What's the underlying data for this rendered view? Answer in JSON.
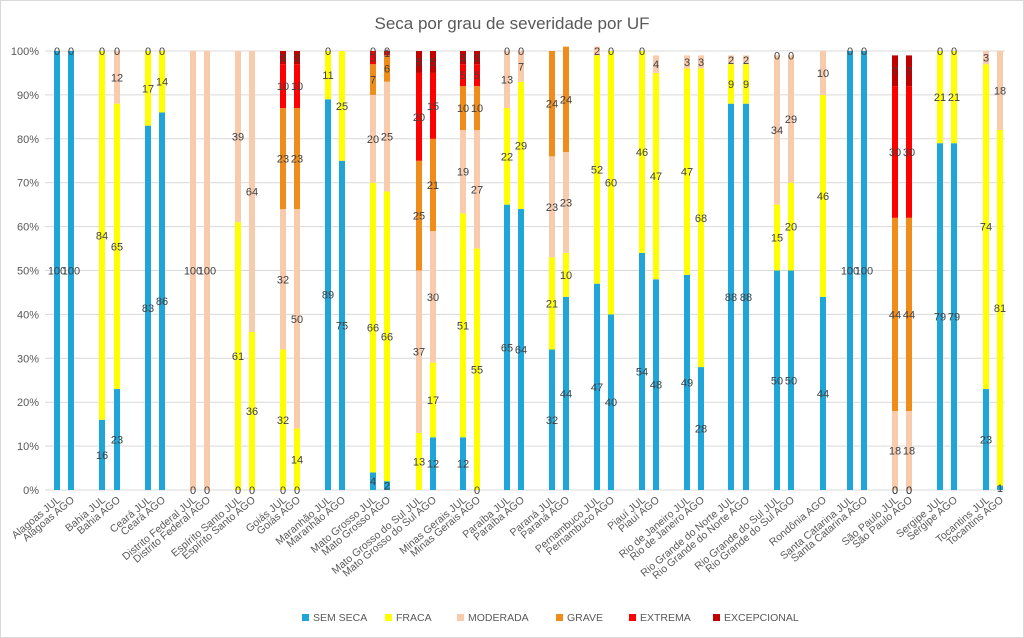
{
  "chart_data": {
    "type": "bar",
    "stacked": true,
    "percent_stacked": true,
    "title": "Seca por grau de severidade por UF",
    "ylim": [
      0,
      100
    ],
    "yticks": [
      "0%",
      "10%",
      "20%",
      "30%",
      "40%",
      "50%",
      "60%",
      "70%",
      "80%",
      "90%",
      "100%"
    ],
    "grid": true,
    "legend_position": "bottom",
    "categories": [
      "Alagoas JUL",
      "Alagoas AGO",
      "Bahia JUL",
      "Bahia AGO",
      "Ceará JUL",
      "Ceará AGO",
      "Distrito Federal JUL",
      "Distrito Federal AGO",
      "Espírito Santo JUL",
      "Espírito Santo AGO",
      "Goiás JUL",
      "Goiás AGO",
      "Maranhão JUL",
      "Maranhão AGO",
      "Mato Grosso JUL",
      "Mato Grosso AGO",
      "Mato Grosso do Sul JUL",
      "Mato Grosso do Sul AGO",
      "Minas Gerais JUL",
      "Minas Gerais AGO",
      "Paraíba JUL",
      "Paraíba AGO",
      "Paraná JUL",
      "Paraná AGO",
      "Pernambuco JUL",
      "Pernambuco AGO",
      "Piauí JUL",
      "Piauí AGO",
      "Rio de Janeiro JUL",
      "Rio de Janeiro AGO",
      "Rio Grande do Norte JUL",
      "Rio Grande do Norte AGO",
      "Rio Grande do Sul JUL",
      "Rio Grande do Sul AGO",
      "Rondônia AGO",
      "Santa Catarina JUL",
      "Santa Catarina AGO",
      "São Paulo JUL",
      "São Paulo AGO",
      "Sergipe JUL",
      "Sergipe AGO",
      "Tocantins JUL",
      "Tocantins AGO"
    ],
    "series": [
      {
        "name": "SEM SECA",
        "color": "#1fa5d8",
        "values": [
          100,
          100,
          16,
          23,
          83,
          86,
          null,
          null,
          0,
          0,
          0,
          0,
          89,
          75,
          4,
          2,
          0,
          12,
          12,
          0,
          65,
          64,
          32,
          44,
          47,
          40,
          54,
          48,
          49,
          28,
          88,
          88,
          50,
          50,
          44,
          100,
          100,
          0,
          0,
          79,
          79,
          23,
          1
        ]
      },
      {
        "name": "FRACA",
        "color": "#ffff00",
        "values": [
          0,
          0,
          84,
          65,
          17,
          14,
          null,
          null,
          61,
          36,
          32,
          14,
          11,
          25,
          66,
          66,
          13,
          17,
          51,
          55,
          22,
          29,
          21,
          10,
          52,
          60,
          46,
          47,
          47,
          68,
          9,
          9,
          15,
          20,
          46,
          0,
          0,
          0,
          0,
          21,
          21,
          74,
          81
        ]
      },
      {
        "name": "MODERADA",
        "color": "#f8cbad",
        "values": [
          0,
          0,
          0,
          12,
          0,
          0,
          100,
          100,
          39,
          64,
          32,
          50,
          0,
          0,
          20,
          25,
          37,
          30,
          19,
          27,
          13,
          7,
          23,
          23,
          2,
          0,
          0,
          4,
          3,
          3,
          2,
          2,
          34,
          29,
          10,
          0,
          0,
          18,
          18,
          0,
          0,
          3,
          18
        ]
      },
      {
        "name": "GRAVE",
        "color": "#f08c1a",
        "values": [
          0,
          0,
          0,
          0,
          0,
          0,
          0,
          0,
          0,
          0,
          23,
          23,
          0,
          0,
          7,
          6,
          25,
          21,
          10,
          10,
          0,
          0,
          24,
          24,
          0,
          0,
          0,
          0,
          0,
          0,
          0,
          0,
          0,
          0,
          0,
          0,
          0,
          44,
          44,
          0,
          0,
          0,
          0
        ]
      },
      {
        "name": "EXTREMA",
        "color": "#ff0000",
        "values": [
          0,
          0,
          0,
          0,
          0,
          0,
          0,
          0,
          0,
          0,
          10,
          10,
          0,
          0,
          3,
          1,
          20,
          15,
          5,
          5,
          0,
          0,
          0,
          0,
          0,
          0,
          0,
          0,
          0,
          0,
          0,
          0,
          0,
          0,
          0,
          0,
          0,
          30,
          30,
          0,
          0,
          0,
          0
        ]
      },
      {
        "name": "EXCEPCIONAL",
        "color": "#c00000",
        "values": [
          0,
          0,
          0,
          0,
          0,
          0,
          0,
          0,
          0,
          0,
          3,
          3,
          0,
          0,
          0,
          0,
          5,
          5,
          3,
          3,
          0,
          0,
          0,
          0,
          0,
          0,
          0,
          0,
          0,
          0,
          0,
          0,
          0,
          0,
          0,
          0,
          0,
          7,
          7,
          0,
          0,
          0,
          0
        ]
      }
    ],
    "value_labels": [
      {
        "bar": 0,
        "series": 0,
        "text": "100"
      },
      {
        "bar": 0,
        "series": 1,
        "text": "0"
      },
      {
        "bar": 1,
        "series": 0,
        "text": "100"
      },
      {
        "bar": 1,
        "series": 1,
        "text": "0"
      },
      {
        "bar": 2,
        "series": 0,
        "text": "16"
      },
      {
        "bar": 2,
        "series": 1,
        "text": "84"
      },
      {
        "bar": 2,
        "series": 2,
        "text": "0"
      },
      {
        "bar": 3,
        "series": 0,
        "text": "23"
      },
      {
        "bar": 3,
        "series": 1,
        "text": "65"
      },
      {
        "bar": 3,
        "series": 2,
        "text": "12"
      },
      {
        "bar": 3,
        "series": 3,
        "text": "0"
      },
      {
        "bar": 4,
        "series": 0,
        "text": "83"
      },
      {
        "bar": 4,
        "series": 1,
        "text": "17"
      },
      {
        "bar": 4,
        "series": 2,
        "text": "0"
      },
      {
        "bar": 5,
        "series": 0,
        "text": "86"
      },
      {
        "bar": 5,
        "series": 1,
        "text": "14"
      },
      {
        "bar": 5,
        "series": 2,
        "text": "0"
      },
      {
        "bar": 6,
        "series": 0,
        "text": "0"
      },
      {
        "bar": 6,
        "series": 2,
        "text": "100"
      },
      {
        "bar": 7,
        "series": 0,
        "text": "0"
      },
      {
        "bar": 7,
        "series": 2,
        "text": "100"
      },
      {
        "bar": 8,
        "series": 0,
        "text": "0"
      },
      {
        "bar": 8,
        "series": 1,
        "text": "61"
      },
      {
        "bar": 8,
        "series": 2,
        "text": "39"
      },
      {
        "bar": 9,
        "series": 0,
        "text": "0"
      },
      {
        "bar": 9,
        "series": 1,
        "text": "36"
      },
      {
        "bar": 9,
        "series": 2,
        "text": "64"
      },
      {
        "bar": 10,
        "series": 0,
        "text": "0"
      },
      {
        "bar": 10,
        "series": 1,
        "text": "32"
      },
      {
        "bar": 10,
        "series": 2,
        "text": "32"
      },
      {
        "bar": 10,
        "series": 3,
        "text": "23"
      },
      {
        "bar": 10,
        "series": 4,
        "text": "10"
      },
      {
        "bar": 10,
        "series": 5,
        "text": "3"
      },
      {
        "bar": 11,
        "series": 0,
        "text": "0"
      },
      {
        "bar": 11,
        "series": 1,
        "text": "14"
      },
      {
        "bar": 11,
        "series": 2,
        "text": "50"
      },
      {
        "bar": 11,
        "series": 3,
        "text": "23"
      },
      {
        "bar": 11,
        "series": 4,
        "text": "10"
      },
      {
        "bar": 11,
        "series": 5,
        "text": "3"
      },
      {
        "bar": 12,
        "series": 0,
        "text": "89"
      },
      {
        "bar": 12,
        "series": 1,
        "text": "11"
      },
      {
        "bar": 12,
        "series": 2,
        "text": "0"
      },
      {
        "bar": 13,
        "series": 0,
        "text": "75"
      },
      {
        "bar": 13,
        "series": 1,
        "text": "25"
      },
      {
        "bar": 14,
        "series": 0,
        "text": "4"
      },
      {
        "bar": 14,
        "series": 1,
        "text": "66"
      },
      {
        "bar": 14,
        "series": 2,
        "text": "20"
      },
      {
        "bar": 14,
        "series": 3,
        "text": "7"
      },
      {
        "bar": 14,
        "series": 4,
        "text": "3"
      },
      {
        "bar": 14,
        "series": 5,
        "text": "0"
      },
      {
        "bar": 15,
        "series": 0,
        "text": "2"
      },
      {
        "bar": 15,
        "series": 1,
        "text": "66"
      },
      {
        "bar": 15,
        "series": 2,
        "text": "25"
      },
      {
        "bar": 15,
        "series": 3,
        "text": "6"
      },
      {
        "bar": 15,
        "series": 4,
        "text": "1"
      },
      {
        "bar": 15,
        "series": 5,
        "text": "0"
      },
      {
        "bar": 16,
        "series": 1,
        "text": "13"
      },
      {
        "bar": 16,
        "series": 2,
        "text": "37"
      },
      {
        "bar": 16,
        "series": 3,
        "text": "25"
      },
      {
        "bar": 16,
        "series": 4,
        "text": "20"
      },
      {
        "bar": 16,
        "series": 5,
        "text": "5"
      },
      {
        "bar": 17,
        "series": 0,
        "text": "12"
      },
      {
        "bar": 17,
        "series": 1,
        "text": "17"
      },
      {
        "bar": 17,
        "series": 2,
        "text": "30"
      },
      {
        "bar": 17,
        "series": 3,
        "text": "21"
      },
      {
        "bar": 17,
        "series": 4,
        "text": "15"
      },
      {
        "bar": 17,
        "series": 5,
        "text": "5"
      },
      {
        "bar": 18,
        "series": 0,
        "text": "12"
      },
      {
        "bar": 18,
        "series": 1,
        "text": "51"
      },
      {
        "bar": 18,
        "series": 2,
        "text": "19"
      },
      {
        "bar": 18,
        "series": 3,
        "text": "10"
      },
      {
        "bar": 18,
        "series": 4,
        "text": "5"
      },
      {
        "bar": 18,
        "series": 5,
        "text": "3"
      },
      {
        "bar": 19,
        "series": 0,
        "text": "0"
      },
      {
        "bar": 19,
        "series": 1,
        "text": "55"
      },
      {
        "bar": 19,
        "series": 2,
        "text": "27"
      },
      {
        "bar": 19,
        "series": 3,
        "text": "10"
      },
      {
        "bar": 19,
        "series": 4,
        "text": "5"
      },
      {
        "bar": 19,
        "series": 5,
        "text": "3"
      },
      {
        "bar": 20,
        "series": 0,
        "text": "65"
      },
      {
        "bar": 20,
        "series": 1,
        "text": "22"
      },
      {
        "bar": 20,
        "series": 2,
        "text": "13"
      },
      {
        "bar": 20,
        "series": 3,
        "text": "0"
      },
      {
        "bar": 21,
        "series": 0,
        "text": "64"
      },
      {
        "bar": 21,
        "series": 1,
        "text": "29"
      },
      {
        "bar": 21,
        "series": 2,
        "text": "7"
      },
      {
        "bar": 21,
        "series": 3,
        "text": "0"
      },
      {
        "bar": 22,
        "series": 0,
        "text": "32"
      },
      {
        "bar": 22,
        "series": 1,
        "text": "21"
      },
      {
        "bar": 22,
        "series": 2,
        "text": "23"
      },
      {
        "bar": 22,
        "series": 3,
        "text": "24"
      },
      {
        "bar": 23,
        "series": 0,
        "text": "44"
      },
      {
        "bar": 23,
        "series": 1,
        "text": "10"
      },
      {
        "bar": 23,
        "series": 2,
        "text": "23"
      },
      {
        "bar": 23,
        "series": 3,
        "text": "24"
      },
      {
        "bar": 24,
        "series": 0,
        "text": "47"
      },
      {
        "bar": 24,
        "series": 1,
        "text": "52"
      },
      {
        "bar": 24,
        "series": 2,
        "text": "2"
      },
      {
        "bar": 25,
        "series": 0,
        "text": "40"
      },
      {
        "bar": 25,
        "series": 1,
        "text": "60"
      },
      {
        "bar": 25,
        "series": 2,
        "text": "0"
      },
      {
        "bar": 26,
        "series": 0,
        "text": "54"
      },
      {
        "bar": 26,
        "series": 1,
        "text": "46"
      },
      {
        "bar": 26,
        "series": 2,
        "text": "0"
      },
      {
        "bar": 27,
        "series": 0,
        "text": "48"
      },
      {
        "bar": 27,
        "series": 1,
        "text": "47"
      },
      {
        "bar": 27,
        "series": 2,
        "text": "4"
      },
      {
        "bar": 28,
        "series": 0,
        "text": "49"
      },
      {
        "bar": 28,
        "series": 1,
        "text": "47"
      },
      {
        "bar": 28,
        "series": 2,
        "text": "3"
      },
      {
        "bar": 29,
        "series": 0,
        "text": "28"
      },
      {
        "bar": 29,
        "series": 1,
        "text": "68"
      },
      {
        "bar": 29,
        "series": 2,
        "text": "3"
      },
      {
        "bar": 30,
        "series": 0,
        "text": "88"
      },
      {
        "bar": 30,
        "series": 1,
        "text": "9"
      },
      {
        "bar": 30,
        "series": 2,
        "text": "2"
      },
      {
        "bar": 31,
        "series": 0,
        "text": "88"
      },
      {
        "bar": 31,
        "series": 1,
        "text": "9"
      },
      {
        "bar": 31,
        "series": 2,
        "text": "2"
      },
      {
        "bar": 32,
        "series": 0,
        "text": "50"
      },
      {
        "bar": 32,
        "series": 1,
        "text": "15"
      },
      {
        "bar": 32,
        "series": 2,
        "text": "34"
      },
      {
        "bar": 32,
        "series": 3,
        "text": "0"
      },
      {
        "bar": 33,
        "series": 0,
        "text": "50"
      },
      {
        "bar": 33,
        "series": 1,
        "text": "20"
      },
      {
        "bar": 33,
        "series": 2,
        "text": "29"
      },
      {
        "bar": 33,
        "series": 3,
        "text": "0"
      },
      {
        "bar": 34,
        "series": 0,
        "text": "44"
      },
      {
        "bar": 34,
        "series": 1,
        "text": "46"
      },
      {
        "bar": 34,
        "series": 2,
        "text": "10"
      },
      {
        "bar": 35,
        "series": 0,
        "text": "100"
      },
      {
        "bar": 35,
        "series": 1,
        "text": "0"
      },
      {
        "bar": 36,
        "series": 0,
        "text": "100"
      },
      {
        "bar": 36,
        "series": 1,
        "text": "0"
      },
      {
        "bar": 37,
        "series": 0,
        "text": "0"
      },
      {
        "bar": 37,
        "series": 1,
        "text": "0"
      },
      {
        "bar": 37,
        "series": 2,
        "text": "18"
      },
      {
        "bar": 37,
        "series": 3,
        "text": "44"
      },
      {
        "bar": 37,
        "series": 4,
        "text": "30"
      },
      {
        "bar": 37,
        "series": 5,
        "text": "7"
      },
      {
        "bar": 38,
        "series": 0,
        "text": "0"
      },
      {
        "bar": 38,
        "series": 1,
        "text": "0"
      },
      {
        "bar": 38,
        "series": 2,
        "text": "18"
      },
      {
        "bar": 38,
        "series": 3,
        "text": "44"
      },
      {
        "bar": 38,
        "series": 4,
        "text": "30"
      },
      {
        "bar": 38,
        "series": 5,
        "text": "7"
      },
      {
        "bar": 39,
        "series": 0,
        "text": "79"
      },
      {
        "bar": 39,
        "series": 1,
        "text": "21"
      },
      {
        "bar": 39,
        "series": 2,
        "text": "0"
      },
      {
        "bar": 40,
        "series": 0,
        "text": "79"
      },
      {
        "bar": 40,
        "series": 1,
        "text": "21"
      },
      {
        "bar": 40,
        "series": 2,
        "text": "0"
      },
      {
        "bar": 41,
        "series": 0,
        "text": "23"
      },
      {
        "bar": 41,
        "series": 1,
        "text": "74"
      },
      {
        "bar": 41,
        "series": 2,
        "text": "3"
      },
      {
        "bar": 42,
        "series": 0,
        "text": "1"
      },
      {
        "bar": 42,
        "series": 1,
        "text": "81"
      },
      {
        "bar": 42,
        "series": 2,
        "text": "18"
      }
    ]
  }
}
